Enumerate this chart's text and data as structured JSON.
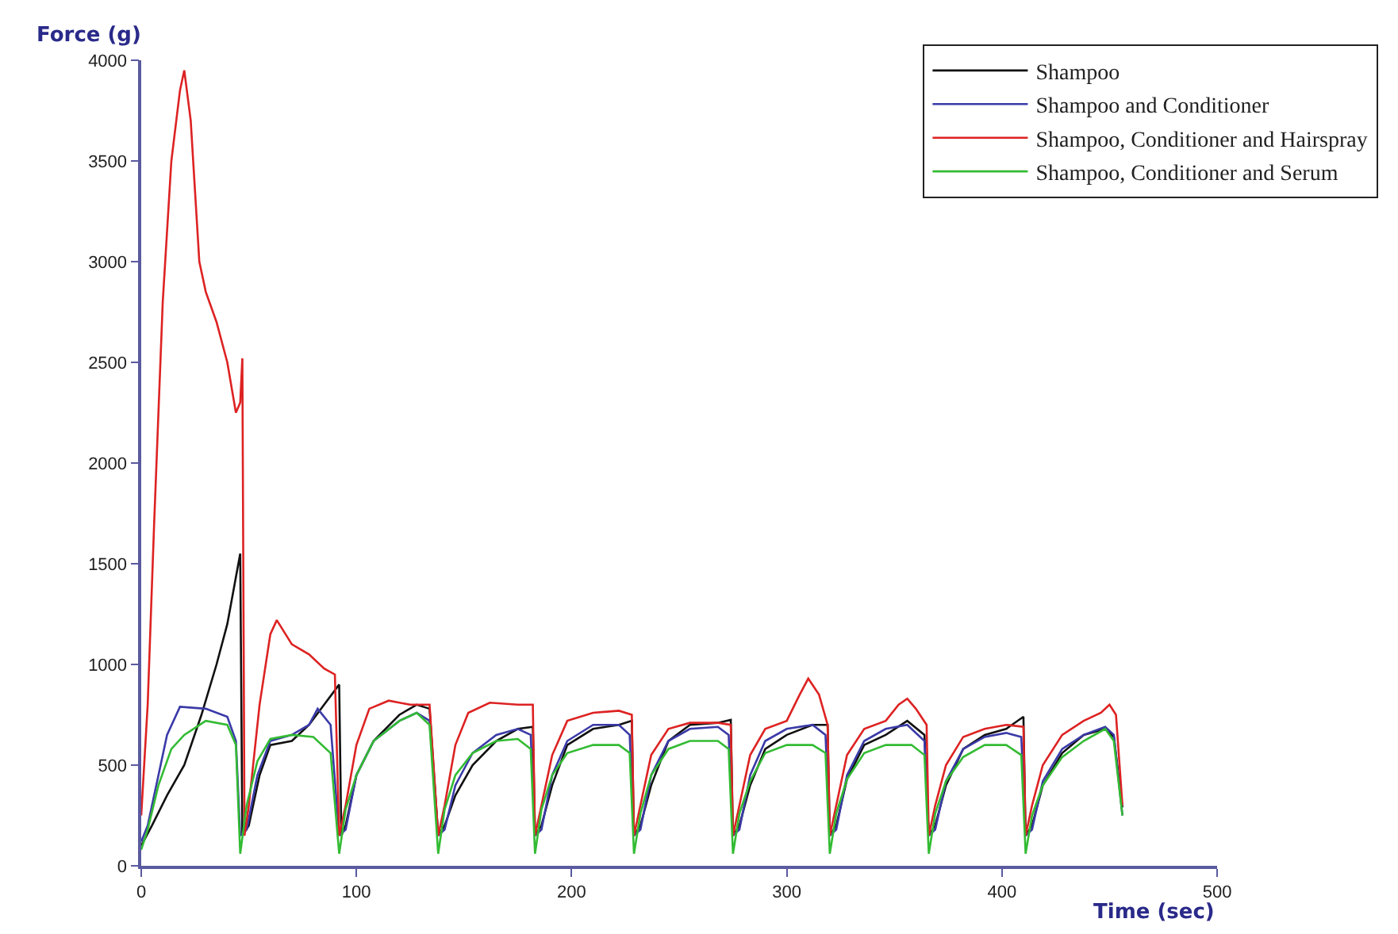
{
  "chart_data": {
    "type": "line",
    "xlabel": "Time (sec)",
    "ylabel": "Force (g)",
    "xlim": [
      0,
      500
    ],
    "xticks": [
      0,
      100,
      200,
      300,
      400,
      500
    ],
    "ylim": [
      0,
      4000
    ],
    "yticks": [
      0,
      500,
      1000,
      1500,
      2000,
      2500,
      3000,
      3500,
      4000
    ],
    "grid": false,
    "legend": "top right",
    "marker": "none",
    "line_style": "solid",
    "series": [
      {
        "name": "Shampoo",
        "color": "#111111",
        "x": [
          0,
          5,
          12,
          20,
          28,
          35,
          40,
          46,
          47,
          50,
          55,
          60,
          70,
          78,
          85,
          92,
          93,
          95,
          100,
          108,
          120,
          128,
          134,
          138,
          141,
          146,
          154,
          165,
          175,
          182,
          183,
          186,
          191,
          198,
          210,
          222,
          228,
          229,
          232,
          237,
          245,
          255,
          268,
          274,
          275,
          278,
          283,
          290,
          300,
          312,
          319,
          320,
          323,
          328,
          336,
          346,
          356,
          364,
          366,
          369,
          374,
          382,
          392,
          402,
          410,
          411,
          414,
          419,
          428,
          438,
          448,
          452,
          456
        ],
        "values": [
          100,
          200,
          350,
          500,
          750,
          1000,
          1200,
          1550,
          150,
          200,
          450,
          600,
          620,
          700,
          800,
          900,
          150,
          200,
          450,
          620,
          750,
          800,
          780,
          150,
          200,
          350,
          500,
          620,
          680,
          690,
          150,
          200,
          400,
          600,
          680,
          700,
          720,
          150,
          200,
          400,
          620,
          700,
          710,
          725,
          150,
          200,
          400,
          580,
          650,
          700,
          700,
          150,
          200,
          430,
          600,
          650,
          720,
          650,
          150,
          200,
          400,
          580,
          650,
          680,
          740,
          150,
          200,
          400,
          560,
          650,
          680,
          640,
          290
        ]
      },
      {
        "name": "Shampoo and Conditioner",
        "color": "#3a3aa8",
        "x": [
          0,
          3,
          8,
          12,
          18,
          30,
          40,
          44,
          46,
          49,
          54,
          60,
          70,
          78,
          82,
          88,
          92,
          95,
          100,
          108,
          120,
          128,
          134,
          138,
          141,
          146,
          154,
          165,
          175,
          181,
          183,
          186,
          191,
          198,
          210,
          222,
          227,
          229,
          232,
          237,
          245,
          255,
          268,
          273,
          275,
          278,
          283,
          290,
          300,
          312,
          318,
          320,
          323,
          328,
          336,
          346,
          356,
          364,
          366,
          369,
          374,
          382,
          392,
          402,
          409,
          411,
          414,
          419,
          428,
          438,
          448,
          452,
          456
        ],
        "values": [
          120,
          200,
          450,
          650,
          790,
          780,
          740,
          620,
          150,
          180,
          450,
          620,
          650,
          700,
          780,
          700,
          150,
          180,
          450,
          620,
          720,
          760,
          720,
          150,
          180,
          400,
          560,
          650,
          680,
          650,
          150,
          180,
          450,
          620,
          700,
          700,
          650,
          150,
          180,
          450,
          620,
          680,
          690,
          650,
          150,
          180,
          450,
          620,
          680,
          700,
          650,
          150,
          180,
          450,
          620,
          680,
          700,
          620,
          150,
          180,
          420,
          580,
          640,
          660,
          640,
          150,
          180,
          420,
          580,
          650,
          690,
          650,
          250
        ]
      },
      {
        "name": "Shampoo, Conditioner and Hairspray",
        "color": "#dd2222",
        "x": [
          0,
          3,
          6,
          10,
          14,
          18,
          20,
          23,
          27,
          30,
          35,
          40,
          44,
          46,
          47,
          48,
          50,
          55,
          60,
          63,
          70,
          78,
          85,
          90,
          92,
          95,
          100,
          106,
          115,
          125,
          134,
          138,
          141,
          146,
          152,
          162,
          175,
          182,
          183,
          186,
          191,
          198,
          210,
          222,
          228,
          229,
          232,
          237,
          245,
          255,
          268,
          274,
          275,
          278,
          283,
          290,
          300,
          306,
          310,
          315,
          319,
          320,
          323,
          328,
          336,
          346,
          352,
          356,
          360,
          365,
          366,
          369,
          374,
          382,
          392,
          402,
          410,
          411,
          414,
          419,
          428,
          438,
          446,
          450,
          453,
          456
        ],
        "values": [
          250,
          800,
          1700,
          2800,
          3500,
          3850,
          3950,
          3700,
          3000,
          2850,
          2700,
          2500,
          2250,
          2300,
          2520,
          150,
          300,
          800,
          1150,
          1220,
          1100,
          1050,
          980,
          950,
          150,
          300,
          600,
          780,
          820,
          800,
          800,
          150,
          300,
          600,
          760,
          810,
          800,
          800,
          150,
          300,
          550,
          720,
          760,
          770,
          750,
          150,
          300,
          550,
          680,
          710,
          710,
          700,
          150,
          300,
          550,
          680,
          720,
          850,
          930,
          850,
          700,
          150,
          300,
          550,
          680,
          720,
          800,
          830,
          780,
          700,
          150,
          300,
          500,
          640,
          680,
          700,
          690,
          150,
          300,
          500,
          650,
          720,
          760,
          800,
          750,
          300
        ]
      },
      {
        "name": "Shampoo, Conditioner and Serum",
        "color": "#33bb33",
        "x": [
          0,
          3,
          8,
          14,
          20,
          30,
          40,
          44,
          46,
          49,
          54,
          60,
          70,
          80,
          88,
          92,
          95,
          100,
          108,
          120,
          128,
          134,
          138,
          141,
          146,
          154,
          165,
          175,
          181,
          183,
          186,
          191,
          198,
          210,
          222,
          227,
          229,
          232,
          237,
          245,
          255,
          268,
          273,
          275,
          278,
          283,
          290,
          300,
          312,
          318,
          320,
          323,
          328,
          336,
          346,
          358,
          364,
          366,
          369,
          374,
          382,
          392,
          402,
          409,
          411,
          414,
          419,
          428,
          438,
          448,
          452,
          456
        ],
        "values": [
          80,
          180,
          400,
          580,
          650,
          720,
          700,
          600,
          60,
          300,
          520,
          630,
          650,
          640,
          560,
          60,
          280,
          450,
          620,
          720,
          760,
          700,
          60,
          280,
          450,
          560,
          620,
          630,
          580,
          60,
          280,
          450,
          560,
          600,
          600,
          560,
          60,
          260,
          450,
          580,
          620,
          620,
          580,
          60,
          260,
          420,
          560,
          600,
          600,
          560,
          60,
          260,
          430,
          560,
          600,
          600,
          550,
          60,
          260,
          420,
          540,
          600,
          600,
          550,
          60,
          250,
          400,
          540,
          620,
          680,
          620,
          250
        ]
      }
    ]
  }
}
